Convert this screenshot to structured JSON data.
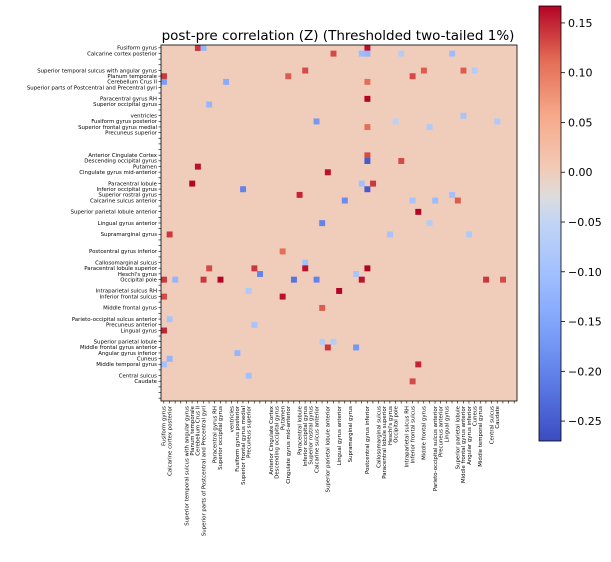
{
  "chart_data": {
    "type": "heatmap",
    "title": "post-pre correlation (Z) (Thresholded two-tailed 1%)",
    "n": 63,
    "labels": [
      "Fusiform gyrus",
      "Calcarine cortex posterior",
      "",
      "",
      "Superior temporal sulcus with angular gyrus",
      "Planum temporale",
      "Cerebellum Crus II",
      "Superior parts of Postcentral and Precentral gyri",
      "",
      "Paracentral gyrus RH",
      "Superior occipital gyrus",
      "",
      "ventricles",
      "Fusiform gyrus posterior",
      "Superior frontal gyrus medial",
      "Precuneus superior",
      "",
      "",
      "",
      "Anterior Cingulate Cortex",
      "Descending occipital gyrus",
      "Putamen",
      "Cingulate gyrus mid-anterior",
      "",
      "Paracentral lobule",
      "Inferior occipital gyrus",
      "Superior rostral gyrus",
      "Calcarine sulcus anterior",
      "",
      "Superior parietal lobule anterior",
      "",
      "Lingual gyrus anterior",
      "",
      "Supramarginal gyrus",
      "",
      "",
      "Postcentral gyrus inferior",
      "",
      "Callosomarginal sulcus",
      "Paracentral lobule superior",
      "Heschl's gyrus",
      "Occipital pole",
      "",
      "Intraparietal sulcus RH",
      "Inferior frontal sulcus",
      "",
      "Middle frontal gyrus",
      "",
      "Parieto-occipital sulcus anterior",
      "Precuneus anterior",
      "Lingual gyrus",
      "",
      "Superior parietal lobule",
      "Middle frontal gyrus anterior",
      "Angular gyrus inferior",
      "Cuneus",
      "Middle temporal gyrus",
      "",
      "Central sulcus",
      "Caudate",
      "",
      "",
      ""
    ],
    "cells": [
      [
        0,
        36,
        0.16
      ],
      [
        0,
        6,
        0.14
      ],
      [
        0,
        7,
        -0.12
      ],
      [
        1,
        36,
        -0.12
      ],
      [
        1,
        35,
        -0.11
      ],
      [
        1,
        51,
        -0.11
      ],
      [
        1,
        42,
        -0.07
      ],
      [
        1,
        30,
        0.13
      ],
      [
        4,
        46,
        0.12
      ],
      [
        4,
        53,
        0.12
      ],
      [
        4,
        25,
        0.13
      ],
      [
        4,
        55,
        -0.07
      ],
      [
        5,
        22,
        0.12
      ],
      [
        5,
        0,
        0.14
      ],
      [
        5,
        44,
        0.13
      ],
      [
        6,
        36,
        0.11
      ],
      [
        6,
        0,
        -0.16
      ],
      [
        6,
        11,
        -0.14
      ],
      [
        9,
        36,
        0.17
      ],
      [
        10,
        8,
        -0.12
      ],
      [
        12,
        53,
        -0.09
      ],
      [
        13,
        27,
        -0.17
      ],
      [
        13,
        41,
        -0.06
      ],
      [
        13,
        59,
        -0.08
      ],
      [
        14,
        47,
        -0.08
      ],
      [
        14,
        36,
        0.11
      ],
      [
        19,
        36,
        0.13
      ],
      [
        20,
        36,
        -0.25
      ],
      [
        20,
        42,
        0.13
      ],
      [
        21,
        6,
        0.16
      ],
      [
        22,
        29,
        0.16
      ],
      [
        24,
        5,
        0.17
      ],
      [
        24,
        37,
        0.14
      ],
      [
        24,
        35,
        -0.1
      ],
      [
        25,
        14,
        -0.2
      ],
      [
        25,
        36,
        -0.25
      ],
      [
        26,
        24,
        0.15
      ],
      [
        26,
        51,
        -0.1
      ],
      [
        27,
        32,
        -0.19
      ],
      [
        27,
        52,
        0.12
      ],
      [
        27,
        44,
        -0.09
      ],
      [
        27,
        48,
        -0.11
      ],
      [
        29,
        45,
        0.17
      ],
      [
        31,
        28,
        -0.2
      ],
      [
        31,
        47,
        -0.07
      ],
      [
        33,
        1,
        0.14
      ],
      [
        33,
        40,
        -0.09
      ],
      [
        33,
        54,
        -0.08
      ],
      [
        36,
        21,
        0.11
      ],
      [
        38,
        25,
        -0.1
      ],
      [
        39,
        8,
        0.13
      ],
      [
        39,
        16,
        0.14
      ],
      [
        39,
        25,
        0.16
      ],
      [
        39,
        36,
        0.17
      ],
      [
        40,
        34,
        -0.09
      ],
      [
        40,
        17,
        -0.2
      ],
      [
        41,
        0,
        0.14
      ],
      [
        41,
        2,
        -0.12
      ],
      [
        41,
        7,
        0.14
      ],
      [
        41,
        10,
        0.17
      ],
      [
        41,
        23,
        -0.22
      ],
      [
        41,
        27,
        -0.2
      ],
      [
        41,
        35,
        0.16
      ],
      [
        41,
        57,
        0.14
      ],
      [
        41,
        60,
        0.13
      ],
      [
        43,
        15,
        -0.08
      ],
      [
        43,
        31,
        0.17
      ],
      [
        44,
        0,
        0.13
      ],
      [
        44,
        21,
        0.16
      ],
      [
        46,
        28,
        0.12
      ],
      [
        48,
        1,
        -0.09
      ],
      [
        49,
        16,
        -0.09
      ],
      [
        50,
        0,
        0.15
      ],
      [
        52,
        28,
        -0.07
      ],
      [
        52,
        30,
        -0.07
      ],
      [
        53,
        29,
        0.14
      ],
      [
        53,
        34,
        -0.17
      ],
      [
        54,
        13,
        -0.12
      ],
      [
        55,
        1,
        -0.12
      ],
      [
        56,
        0,
        -0.1
      ],
      [
        56,
        45,
        0.15
      ],
      [
        58,
        15,
        -0.1
      ],
      [
        59,
        44,
        0.13
      ]
    ],
    "vmin": -0.27,
    "vmax": 0.167,
    "colormap": "coolwarm",
    "background_value": 0.0,
    "colorbar_ticks": [
      0.15,
      0.1,
      0.05,
      0.0,
      -0.05,
      -0.1,
      -0.15,
      -0.2,
      -0.25
    ],
    "colorbar_tick_labels": [
      "0.15",
      "0.10",
      "0.05",
      "0.00",
      "−0.05",
      "−0.10",
      "−0.15",
      "−0.20",
      "−0.25"
    ]
  }
}
